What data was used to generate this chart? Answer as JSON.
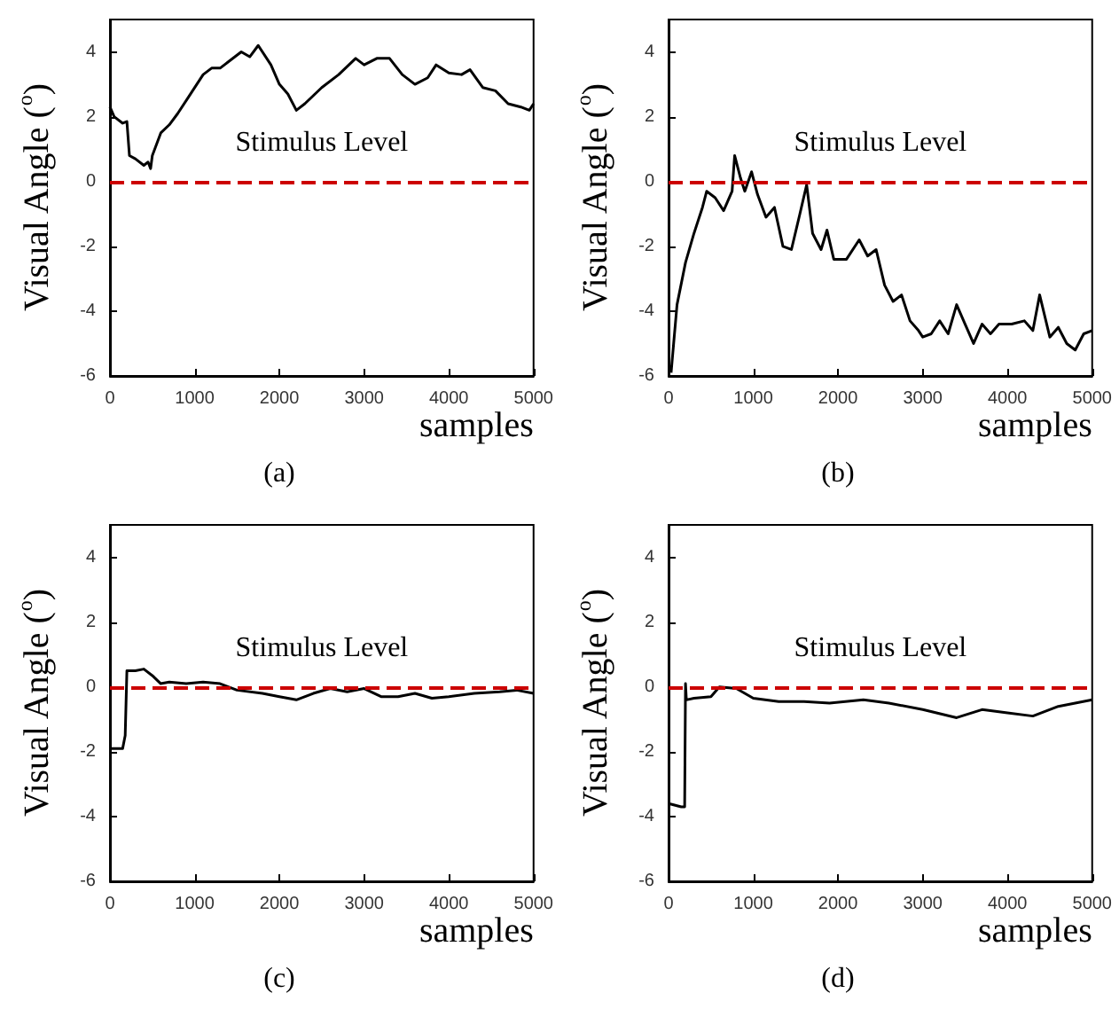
{
  "chart_data": [
    {
      "type": "line",
      "title": "(a)",
      "xlabel": "samples",
      "ylabel": "Visual Angle ($^{o}$)",
      "xlim": [
        0,
        5000
      ],
      "xticks": [
        0,
        1000,
        2000,
        3000,
        4000,
        5000
      ],
      "ylim": [
        -6,
        5
      ],
      "yticks": [
        -6,
        -4,
        -2,
        0,
        2,
        4
      ],
      "ref_lines": [
        {
          "axis": "y",
          "value": 0,
          "label": "Stimulus Level",
          "color": "#cc0000",
          "line_style": "dashed"
        }
      ],
      "series": [
        {
          "color": "#000000",
          "x": [
            0,
            50,
            150,
            200,
            230,
            300,
            400,
            450,
            480,
            500,
            600,
            700,
            800,
            950,
            1100,
            1200,
            1300,
            1400,
            1550,
            1650,
            1750,
            1900,
            2000,
            2100,
            2200,
            2300,
            2500,
            2700,
            2900,
            3000,
            3150,
            3300,
            3450,
            3600,
            3750,
            3850,
            4000,
            4150,
            4250,
            4400,
            4550,
            4700,
            4850,
            4950,
            5000
          ],
          "values": [
            2.3,
            2.0,
            1.8,
            1.85,
            0.8,
            0.7,
            0.5,
            0.6,
            0.4,
            0.8,
            1.5,
            1.75,
            2.1,
            2.7,
            3.3,
            3.5,
            3.5,
            3.7,
            4.0,
            3.85,
            4.2,
            3.6,
            3.0,
            2.7,
            2.2,
            2.4,
            2.9,
            3.3,
            3.8,
            3.6,
            3.8,
            3.8,
            3.3,
            3.0,
            3.2,
            3.6,
            3.35,
            3.3,
            3.45,
            2.9,
            2.8,
            2.4,
            2.3,
            2.2,
            2.4
          ]
        }
      ]
    },
    {
      "type": "line",
      "title": "(b)",
      "xlabel": "samples",
      "ylabel": "Visual Angle ($^{o}$)",
      "xlim": [
        0,
        5000
      ],
      "xticks": [
        0,
        1000,
        2000,
        3000,
        4000,
        5000
      ],
      "ylim": [
        -6,
        5
      ],
      "yticks": [
        -6,
        -4,
        -2,
        0,
        2,
        4
      ],
      "ref_lines": [
        {
          "axis": "y",
          "value": 0,
          "label": "Stimulus Level",
          "color": "#cc0000",
          "line_style": "dashed"
        }
      ],
      "series": [
        {
          "color": "#000000",
          "x": [
            30,
            60,
            100,
            200,
            300,
            400,
            450,
            550,
            650,
            750,
            780,
            850,
            900,
            980,
            1050,
            1150,
            1250,
            1350,
            1450,
            1550,
            1630,
            1700,
            1800,
            1870,
            1950,
            2100,
            2250,
            2350,
            2450,
            2550,
            2650,
            2750,
            2850,
            2950,
            3000,
            3100,
            3200,
            3300,
            3400,
            3500,
            3600,
            3700,
            3800,
            3900,
            4050,
            4200,
            4300,
            4380,
            4500,
            4600,
            4700,
            4800,
            4900,
            5000
          ],
          "values": [
            -5.9,
            -5.0,
            -3.8,
            -2.5,
            -1.6,
            -0.8,
            -0.3,
            -0.5,
            -0.9,
            -0.3,
            0.8,
            0.1,
            -0.3,
            0.3,
            -0.4,
            -1.1,
            -0.8,
            -2.0,
            -2.1,
            -1.0,
            -0.1,
            -1.6,
            -2.1,
            -1.5,
            -2.4,
            -2.4,
            -1.8,
            -2.3,
            -2.1,
            -3.2,
            -3.7,
            -3.5,
            -4.3,
            -4.6,
            -4.8,
            -4.7,
            -4.3,
            -4.7,
            -3.8,
            -4.4,
            -5.0,
            -4.4,
            -4.7,
            -4.4,
            -4.4,
            -4.3,
            -4.6,
            -3.5,
            -4.8,
            -4.5,
            -5.0,
            -5.2,
            -4.7,
            -4.6
          ]
        }
      ]
    },
    {
      "type": "line",
      "title": "(c)",
      "xlabel": "samples",
      "ylabel": "Visual Angle ($^{o}$)",
      "xlim": [
        0,
        5000
      ],
      "xticks": [
        0,
        1000,
        2000,
        3000,
        4000,
        5000
      ],
      "ylim": [
        -6,
        5
      ],
      "yticks": [
        -6,
        -4,
        -2,
        0,
        2,
        4
      ],
      "ref_lines": [
        {
          "axis": "y",
          "value": 0,
          "label": "Stimulus Level",
          "color": "#cc0000",
          "line_style": "dashed"
        }
      ],
      "series": [
        {
          "color": "#000000",
          "x": [
            0,
            150,
            180,
            200,
            300,
            400,
            500,
            600,
            700,
            900,
            1100,
            1300,
            1500,
            1800,
            2000,
            2200,
            2400,
            2600,
            2800,
            3000,
            3200,
            3400,
            3600,
            3800,
            4000,
            4300,
            4600,
            4800,
            5000
          ],
          "values": [
            -1.9,
            -1.9,
            -1.5,
            0.5,
            0.5,
            0.55,
            0.35,
            0.1,
            0.15,
            0.1,
            0.15,
            0.1,
            -0.1,
            -0.2,
            -0.3,
            -0.4,
            -0.2,
            -0.05,
            -0.15,
            -0.05,
            -0.3,
            -0.3,
            -0.2,
            -0.35,
            -0.3,
            -0.2,
            -0.15,
            -0.1,
            -0.2
          ]
        }
      ]
    },
    {
      "type": "line",
      "title": "(d)",
      "xlabel": "samples",
      "ylabel": "Visual Angle ($^{o}$)",
      "xlim": [
        0,
        5000
      ],
      "xticks": [
        0,
        1000,
        2000,
        3000,
        4000,
        5000
      ],
      "ylim": [
        -6,
        5
      ],
      "yticks": [
        -6,
        -4,
        -2,
        0,
        2,
        4
      ],
      "ref_lines": [
        {
          "axis": "y",
          "value": 0,
          "label": "Stimulus Level",
          "color": "#cc0000",
          "line_style": "dashed"
        }
      ],
      "series": [
        {
          "color": "#000000",
          "x": [
            0,
            150,
            190,
            200,
            210,
            300,
            500,
            600,
            800,
            1000,
            1300,
            1600,
            1900,
            2300,
            2600,
            3000,
            3400,
            3700,
            4000,
            4300,
            4600,
            5000
          ],
          "values": [
            -3.6,
            -3.7,
            -3.7,
            0.1,
            -0.4,
            -0.35,
            -0.3,
            0.0,
            -0.05,
            -0.35,
            -0.45,
            -0.45,
            -0.5,
            -0.4,
            -0.5,
            -0.7,
            -0.95,
            -0.7,
            -0.8,
            -0.9,
            -0.6,
            -0.4
          ]
        }
      ]
    }
  ]
}
